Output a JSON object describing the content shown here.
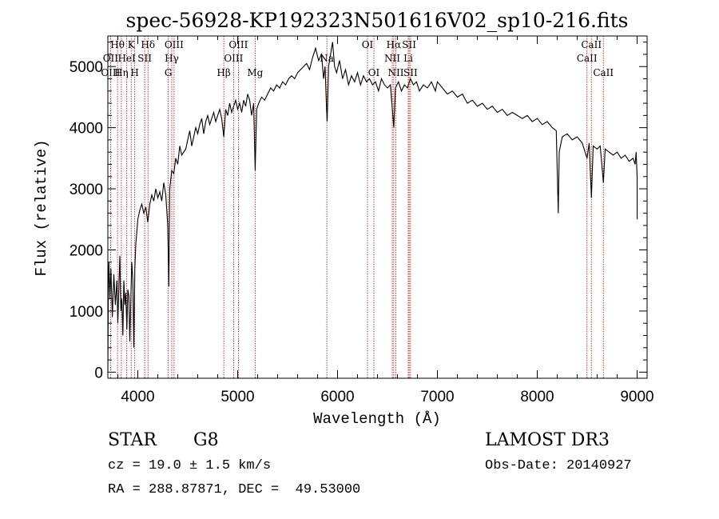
{
  "chart_data": {
    "type": "line",
    "title": "spec-56928-KP192323N501616V02_sp10-216.fits",
    "xlabel": "Wavelength (Å)",
    "ylabel": "Flux (relative)",
    "xlim": [
      3700,
      9100
    ],
    "ylim": [
      -100,
      5500
    ],
    "x_ticks": [
      4000,
      5000,
      6000,
      7000,
      8000,
      9000
    ],
    "y_ticks": [
      0,
      1000,
      2000,
      3000,
      4000,
      5000
    ],
    "x_tick_labels": [
      "4000",
      "5000",
      "6000",
      "7000",
      "8000",
      "9000"
    ],
    "y_tick_labels": [
      "0",
      "1000",
      "2000",
      "3000",
      "4000",
      "5000"
    ],
    "series": [
      {
        "name": "spectrum",
        "points": [
          [
            3700,
            0
          ],
          [
            3705,
            1400
          ],
          [
            3710,
            1800
          ],
          [
            3720,
            1200
          ],
          [
            3730,
            1700
          ],
          [
            3745,
            900
          ],
          [
            3760,
            1600
          ],
          [
            3775,
            1100
          ],
          [
            3790,
            1500
          ],
          [
            3800,
            800
          ],
          [
            3810,
            1400
          ],
          [
            3820,
            1900
          ],
          [
            3830,
            1000
          ],
          [
            3840,
            1200
          ],
          [
            3850,
            600
          ],
          [
            3860,
            1500
          ],
          [
            3870,
            1100
          ],
          [
            3880,
            1300
          ],
          [
            3890,
            700
          ],
          [
            3900,
            1350
          ],
          [
            3910,
            1250
          ],
          [
            3920,
            500
          ],
          [
            3930,
            1200
          ],
          [
            3940,
            1800
          ],
          [
            3950,
            1500
          ],
          [
            3960,
            400
          ],
          [
            3970,
            1700
          ],
          [
            3980,
            2100
          ],
          [
            3990,
            2300
          ],
          [
            4000,
            2500
          ],
          [
            4020,
            2650
          ],
          [
            4040,
            2750
          ],
          [
            4060,
            2600
          ],
          [
            4080,
            2700
          ],
          [
            4100,
            2450
          ],
          [
            4120,
            2750
          ],
          [
            4140,
            2900
          ],
          [
            4160,
            2800
          ],
          [
            4180,
            3000
          ],
          [
            4200,
            2850
          ],
          [
            4220,
            2950
          ],
          [
            4240,
            2800
          ],
          [
            4260,
            3100
          ],
          [
            4280,
            2900
          ],
          [
            4300,
            2400
          ],
          [
            4310,
            1400
          ],
          [
            4320,
            3000
          ],
          [
            4340,
            3300
          ],
          [
            4360,
            3250
          ],
          [
            4380,
            3500
          ],
          [
            4400,
            3400
          ],
          [
            4420,
            3700
          ],
          [
            4440,
            3550
          ],
          [
            4460,
            3600
          ],
          [
            4480,
            3650
          ],
          [
            4500,
            3800
          ],
          [
            4520,
            3950
          ],
          [
            4540,
            3700
          ],
          [
            4560,
            3850
          ],
          [
            4580,
            4000
          ],
          [
            4600,
            3900
          ],
          [
            4620,
            4050
          ],
          [
            4640,
            4150
          ],
          [
            4660,
            3900
          ],
          [
            4680,
            4100
          ],
          [
            4700,
            4200
          ],
          [
            4720,
            4050
          ],
          [
            4740,
            4150
          ],
          [
            4760,
            4250
          ],
          [
            4780,
            4100
          ],
          [
            4800,
            4200
          ],
          [
            4820,
            4300
          ],
          [
            4840,
            4150
          ],
          [
            4861,
            3850
          ],
          [
            4880,
            4300
          ],
          [
            4900,
            4200
          ],
          [
            4920,
            4400
          ],
          [
            4940,
            4250
          ],
          [
            4960,
            4350
          ],
          [
            4980,
            4450
          ],
          [
            5000,
            4300
          ],
          [
            5020,
            4400
          ],
          [
            5040,
            4250
          ],
          [
            5060,
            4450
          ],
          [
            5080,
            4350
          ],
          [
            5100,
            4550
          ],
          [
            5120,
            4450
          ],
          [
            5140,
            4200
          ],
          [
            5160,
            4400
          ],
          [
            5175,
            3300
          ],
          [
            5190,
            4300
          ],
          [
            5210,
            4400
          ],
          [
            5240,
            4500
          ],
          [
            5270,
            4450
          ],
          [
            5300,
            4550
          ],
          [
            5330,
            4650
          ],
          [
            5360,
            4600
          ],
          [
            5390,
            4700
          ],
          [
            5420,
            4650
          ],
          [
            5450,
            4750
          ],
          [
            5480,
            4700
          ],
          [
            5510,
            4800
          ],
          [
            5540,
            4850
          ],
          [
            5570,
            4800
          ],
          [
            5600,
            4900
          ],
          [
            5630,
            4950
          ],
          [
            5660,
            5000
          ],
          [
            5690,
            5050
          ],
          [
            5720,
            4950
          ],
          [
            5750,
            5150
          ],
          [
            5780,
            5300
          ],
          [
            5810,
            5100
          ],
          [
            5840,
            5200
          ],
          [
            5860,
            4800
          ],
          [
            5875,
            5000
          ],
          [
            5890,
            4300
          ],
          [
            5896,
            4100
          ],
          [
            5910,
            5000
          ],
          [
            5930,
            5200
          ],
          [
            5950,
            5400
          ],
          [
            5970,
            5000
          ],
          [
            5990,
            4900
          ],
          [
            6020,
            5100
          ],
          [
            6050,
            4800
          ],
          [
            6080,
            4950
          ],
          [
            6110,
            4700
          ],
          [
            6140,
            4850
          ],
          [
            6170,
            4750
          ],
          [
            6200,
            4900
          ],
          [
            6230,
            4700
          ],
          [
            6260,
            4850
          ],
          [
            6290,
            4750
          ],
          [
            6320,
            4800
          ],
          [
            6350,
            4700
          ],
          [
            6380,
            4750
          ],
          [
            6410,
            4600
          ],
          [
            6440,
            4800
          ],
          [
            6470,
            4700
          ],
          [
            6500,
            4650
          ],
          [
            6530,
            4700
          ],
          [
            6563,
            4000
          ],
          [
            6580,
            4650
          ],
          [
            6610,
            4750
          ],
          [
            6640,
            4600
          ],
          [
            6670,
            4700
          ],
          [
            6700,
            4650
          ],
          [
            6730,
            4800
          ],
          [
            6760,
            4700
          ],
          [
            6790,
            4750
          ],
          [
            6820,
            4600
          ],
          [
            6860,
            4700
          ],
          [
            6900,
            4650
          ],
          [
            6940,
            4750
          ],
          [
            6980,
            4600
          ],
          [
            7000,
            4750
          ],
          [
            7050,
            4650
          ],
          [
            7100,
            4550
          ],
          [
            7150,
            4600
          ],
          [
            7200,
            4500
          ],
          [
            7250,
            4550
          ],
          [
            7300,
            4400
          ],
          [
            7350,
            4450
          ],
          [
            7400,
            4350
          ],
          [
            7450,
            4400
          ],
          [
            7500,
            4300
          ],
          [
            7550,
            4350
          ],
          [
            7600,
            4250
          ],
          [
            7650,
            4300
          ],
          [
            7700,
            4200
          ],
          [
            7750,
            4250
          ],
          [
            7800,
            4200
          ],
          [
            7850,
            4150
          ],
          [
            7900,
            4200
          ],
          [
            7950,
            4100
          ],
          [
            8000,
            4150
          ],
          [
            8050,
            4050
          ],
          [
            8100,
            4100
          ],
          [
            8150,
            4000
          ],
          [
            8190,
            3950
          ],
          [
            8200,
            3300
          ],
          [
            8210,
            2600
          ],
          [
            8220,
            3600
          ],
          [
            8250,
            3850
          ],
          [
            8300,
            3900
          ],
          [
            8350,
            3800
          ],
          [
            8400,
            3850
          ],
          [
            8450,
            3750
          ],
          [
            8498,
            3500
          ],
          [
            8520,
            3750
          ],
          [
            8542,
            2850
          ],
          [
            8560,
            3700
          ],
          [
            8600,
            3650
          ],
          [
            8630,
            3700
          ],
          [
            8662,
            3100
          ],
          [
            8680,
            3650
          ],
          [
            8720,
            3600
          ],
          [
            8760,
            3550
          ],
          [
            8800,
            3600
          ],
          [
            8840,
            3500
          ],
          [
            8880,
            3550
          ],
          [
            8920,
            3450
          ],
          [
            8960,
            3500
          ],
          [
            8980,
            3400
          ],
          [
            8990,
            3600
          ],
          [
            9000,
            3200
          ],
          [
            9001,
            2500
          ]
        ]
      }
    ],
    "lines": [
      {
        "label": "Hθ",
        "x": 3797,
        "row": 0
      },
      {
        "label": "OII",
        "x": 3727,
        "row": 1
      },
      {
        "label": "OIII",
        "x": 3727,
        "row": 2
      },
      {
        "label": "K",
        "x": 3934,
        "row": 0
      },
      {
        "label": "HeI",
        "x": 3889,
        "row": 1
      },
      {
        "label": "Hη",
        "x": 3835,
        "row": 2
      },
      {
        "label": "SII",
        "x": 4069,
        "row": 1
      },
      {
        "label": "H",
        "x": 3969,
        "row": 2
      },
      {
        "label": "Hδ",
        "x": 4102,
        "row": 0
      },
      {
        "label": "OIII",
        "x": 4363,
        "row": 0
      },
      {
        "label": "Hγ",
        "x": 4340,
        "row": 1
      },
      {
        "label": "G",
        "x": 4305,
        "row": 2
      },
      {
        "label": "OIII",
        "x": 5007,
        "row": 0
      },
      {
        "label": "OIII",
        "x": 4959,
        "row": 1
      },
      {
        "label": "Hβ",
        "x": 4861,
        "row": 2
      },
      {
        "label": "Mg",
        "x": 5175,
        "row": 2
      },
      {
        "label": "Na",
        "x": 5893,
        "row": 1
      },
      {
        "label": "OI",
        "x": 6300,
        "row": 0
      },
      {
        "label": "OI",
        "x": 6364,
        "row": 2
      },
      {
        "label": "Hα",
        "x": 6563,
        "row": 0
      },
      {
        "label": "NII",
        "x": 6548,
        "row": 1
      },
      {
        "label": "NII",
        "x": 6584,
        "row": 2
      },
      {
        "label": "SII",
        "x": 6717,
        "row": 0
      },
      {
        "label": "Li",
        "x": 6708,
        "row": 1
      },
      {
        "label": "SII",
        "x": 6731,
        "row": 2
      },
      {
        "label": "CaII",
        "x": 8542,
        "row": 0
      },
      {
        "label": "CaII",
        "x": 8498,
        "row": 1
      },
      {
        "label": "CaII",
        "x": 8662,
        "row": 2
      }
    ]
  },
  "info": {
    "object_type": "STAR",
    "subclass": "G8",
    "survey": "LAMOST DR3",
    "redshift": "cz = 19.0 ± 1.5 km/s",
    "obs_date": "Obs-Date: 20140927",
    "coords": "RA = 288.87871, DEC =  49.53000"
  },
  "colors": {
    "axis": "#000000",
    "spectrum": "#000000",
    "marker_lines": "#cc0000",
    "background": "#ffffff"
  }
}
